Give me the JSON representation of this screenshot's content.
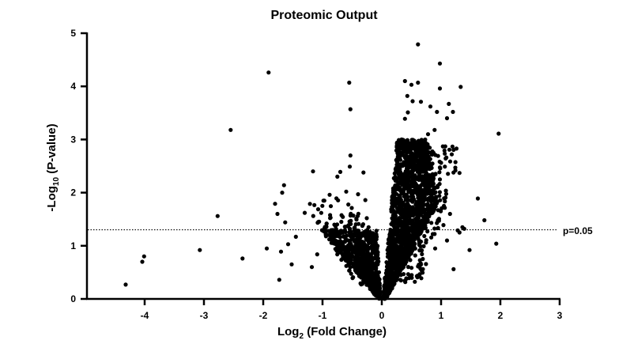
{
  "chart_data": {
    "type": "scatter",
    "title": "Proteomic Output",
    "xlabel": "Log2 (Fold Change)",
    "xlabel_parts": {
      "base": "Log",
      "sub": "2",
      "rest": " (Fold Change)"
    },
    "ylabel": "-Log10 (P-value)",
    "ylabel_parts": {
      "base": "-Log",
      "sub": "10",
      "rest": " (P-value)"
    },
    "xlim": [
      -5.0,
      3.0
    ],
    "ylim": [
      0,
      5
    ],
    "x_ticks": [
      -4,
      -3,
      -2,
      -1,
      0,
      1,
      2,
      3
    ],
    "y_ticks": [
      0,
      1,
      2,
      3,
      4,
      5
    ],
    "grid": false,
    "legend": null,
    "threshold": {
      "y": 1.301,
      "label": "p=0.05",
      "style": "dotted"
    },
    "marker_color": "#000000",
    "outliers": [
      [
        -4.32,
        0.27
      ],
      [
        -4.04,
        0.7
      ],
      [
        -4.01,
        0.8
      ],
      [
        -3.07,
        0.92
      ],
      [
        -2.77,
        1.56
      ],
      [
        -2.55,
        3.18
      ],
      [
        -2.35,
        0.76
      ],
      [
        -1.91,
        4.26
      ],
      [
        -1.76,
        1.6
      ],
      [
        -1.8,
        1.79
      ],
      [
        -1.63,
        1.44
      ],
      [
        -1.94,
        0.95
      ],
      [
        -1.7,
        0.89
      ],
      [
        -1.73,
        0.36
      ],
      [
        -1.68,
        2.0
      ],
      [
        -1.65,
        2.14
      ],
      [
        -1.58,
        1.03
      ],
      [
        -1.52,
        0.65
      ],
      [
        -1.45,
        1.17
      ],
      [
        -1.3,
        1.62
      ],
      [
        -1.16,
        2.4
      ],
      [
        -1.18,
        0.6
      ],
      [
        -1.09,
        0.84
      ],
      [
        -1.07,
        1.45
      ],
      [
        -0.97,
        1.85
      ],
      [
        -0.88,
        1.96
      ],
      [
        -0.55,
        4.07
      ],
      [
        -0.53,
        3.57
      ],
      [
        -0.53,
        2.7
      ],
      [
        -0.54,
        2.49
      ],
      [
        -0.7,
        2.39
      ],
      [
        -0.31,
        2.38
      ],
      [
        -0.75,
        2.3
      ],
      [
        -0.6,
        2.02
      ],
      [
        -0.4,
        1.97
      ],
      [
        0.61,
        4.79
      ],
      [
        0.98,
        4.43
      ],
      [
        1.33,
        3.99
      ],
      [
        1.13,
        3.67
      ],
      [
        0.61,
        4.07
      ],
      [
        0.39,
        4.1
      ],
      [
        0.5,
        4.03
      ],
      [
        0.98,
        3.96
      ],
      [
        0.43,
        3.82
      ],
      [
        0.52,
        3.72
      ],
      [
        0.66,
        3.71
      ],
      [
        1.2,
        3.52
      ],
      [
        0.82,
        3.62
      ],
      [
        0.93,
        3.52
      ],
      [
        1.1,
        3.4
      ],
      [
        0.44,
        3.51
      ],
      [
        0.39,
        3.39
      ],
      [
        0.89,
        3.18
      ],
      [
        1.97,
        3.11
      ],
      [
        0.78,
        3.1
      ],
      [
        1.03,
        2.87
      ],
      [
        1.07,
        2.87
      ],
      [
        1.18,
        2.72
      ],
      [
        1.24,
        2.47
      ],
      [
        1.31,
        2.37
      ],
      [
        1.62,
        1.89
      ],
      [
        1.73,
        1.48
      ],
      [
        1.93,
        1.04
      ],
      [
        1.48,
        0.92
      ],
      [
        1.21,
        0.56
      ],
      [
        1.36,
        1.35
      ],
      [
        1.28,
        1.29
      ],
      [
        1.15,
        1.6
      ],
      [
        1.04,
        1.39
      ],
      [
        0.95,
        1.67
      ],
      [
        1.1,
        1.1
      ],
      [
        0.9,
        0.95
      ],
      [
        0.86,
        1.22
      ],
      [
        1.39,
        1.32
      ],
      [
        1.31,
        1.25
      ]
    ],
    "clusters": [
      {
        "name": "left-lobe-sparse",
        "n": 140,
        "x_range": [
          -1.3,
          -0.15
        ],
        "y_range": [
          0.25,
          1.9
        ],
        "shape": "left-fan"
      },
      {
        "name": "left-lobe-dense",
        "n": 650,
        "x_range": [
          -0.95,
          -0.02
        ],
        "y_range": [
          0.0,
          1.3
        ],
        "shape": "left-v"
      },
      {
        "name": "right-lobe-dense",
        "n": 1500,
        "x_range": [
          0.02,
          0.95
        ],
        "y_range": [
          0.0,
          3.0
        ],
        "shape": "right-v"
      },
      {
        "name": "right-lobe-sparse",
        "n": 220,
        "x_range": [
          0.3,
          1.35
        ],
        "y_range": [
          0.3,
          2.9
        ],
        "shape": "right-fan"
      }
    ]
  }
}
